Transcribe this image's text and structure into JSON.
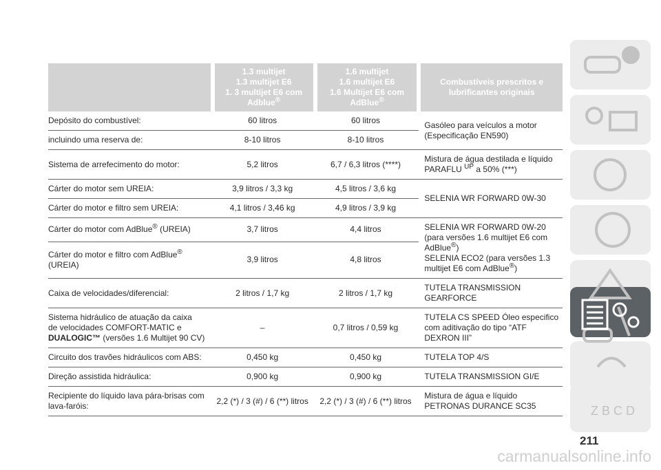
{
  "table": {
    "header": [
      [
        [
          "1.3 multijet"
        ],
        [
          "1.3 multijet E6"
        ],
        [
          "1. 3 multijet E6 com"
        ],
        [
          "Adblue",
          {
            "sup": "®"
          }
        ]
      ],
      [
        [
          "1.6 multijet"
        ],
        [
          "1.6 multijet E6"
        ],
        [
          "1.6 Multijet E6 com"
        ],
        [
          "AdBlue",
          {
            "sup": "®"
          }
        ]
      ],
      [
        [
          "Combustíveis prescritos e"
        ],
        [
          "lubrificantes originais"
        ]
      ]
    ],
    "groups": [
      {
        "rows": [
          [
            "Depósito do combustível:",
            "60 litros",
            "60 litros"
          ],
          [
            "incluindo uma reserva de:",
            "8-10 litros",
            "8-10 litros"
          ]
        ],
        "fuel": [
          "Gasóleo para veículos a motor",
          "(Especificação EN590)"
        ]
      },
      {
        "rows": [
          [
            "Sistema de arrefecimento do motor:",
            "5,2 litros",
            "6,7 / 6,3 litros (****)"
          ]
        ],
        "fuel": [
          "Mistura de água destilada e líquido",
          [
            "PARAFLU ",
            {
              "sup": "UP"
            },
            " a 50% (***)"
          ]
        ]
      },
      {
        "rows": [
          [
            "Cárter do motor sem UREIA:",
            "3,9 litros / 3,3 kg",
            "4,5 litros / 3,6 kg"
          ],
          [
            "Cárter do motor e filtro sem UREIA:",
            "4,1 litros / 3,46 kg",
            "4,9 litros / 3,9 kg"
          ]
        ],
        "fuel": "SELENIA WR FORWARD 0W-30"
      },
      {
        "rows": [
          [
            [
              [
                "Cárter do motor com AdBlue",
                {
                  "sup": "®"
                },
                " (UREIA)"
              ]
            ],
            "3,7 litros",
            "4,4 litros"
          ],
          [
            [
              [
                "Cárter do motor e filtro com AdBlue",
                {
                  "sup": "®"
                }
              ],
              "(UREIA)"
            ],
            "3,9 litros",
            "4,8 litros"
          ]
        ],
        "fuel": [
          "SELENIA WR FORWARD 0W-20",
          "(para versões 1.6 multijet E6 com",
          [
            "AdBlue",
            {
              "sup": "®"
            },
            ")"
          ],
          "SELENIA ECO2 (para versões 1.3",
          [
            "multijet E6 com AdBlue",
            {
              "sup": "®"
            },
            ")"
          ]
        ]
      },
      {
        "rows": [
          [
            "Caixa de velocidades/diferencial:",
            "2 litros / 1,7 kg",
            "2 litros / 1,7 kg"
          ]
        ],
        "fuel": [
          "TUTELA TRANSMISSION",
          "GEARFORCE"
        ]
      },
      {
        "rows": [
          [
            [
              "Sistema hidráulico de atuação da caixa",
              "de velocidades COMFORT-MATIC e",
              [
                {
                  "b": "DUALOGIC™"
                },
                " (versões 1.6 Multijet 90 CV)"
              ]
            ],
            "–",
            "0,7 litros / 0,59 kg"
          ]
        ],
        "fuel": [
          "TUTELA CS SPEED Óleo especifico",
          "com aditivação do tipo “ATF",
          "DEXRON III”"
        ]
      },
      {
        "rows": [
          [
            "Circuito dos travões hidráulicos com ABS:",
            "0,450 kg",
            "0,450 kg"
          ]
        ],
        "fuel": "TUTELA TOP 4/S"
      },
      {
        "rows": [
          [
            "Direção assistida hidráulica:",
            "0,900 kg",
            "0,900 kg"
          ]
        ],
        "fuel": "TUTELA TRANSMISSION GI/E"
      },
      {
        "rows": [
          [
            [
              "Recipiente do líquido lava pára-brisas com",
              "lava-faróis:"
            ],
            "2,2 (*) / 3 (#) / 6 (**) litros",
            "2,2 (*) / 3 (#) / 6 (**) litros"
          ]
        ],
        "fuel": [
          "Mistura de água e líquido",
          "PETRONAS DURANCE SC35"
        ]
      }
    ]
  },
  "page_number": "211",
  "watermark": "carmanualsonline.info"
}
